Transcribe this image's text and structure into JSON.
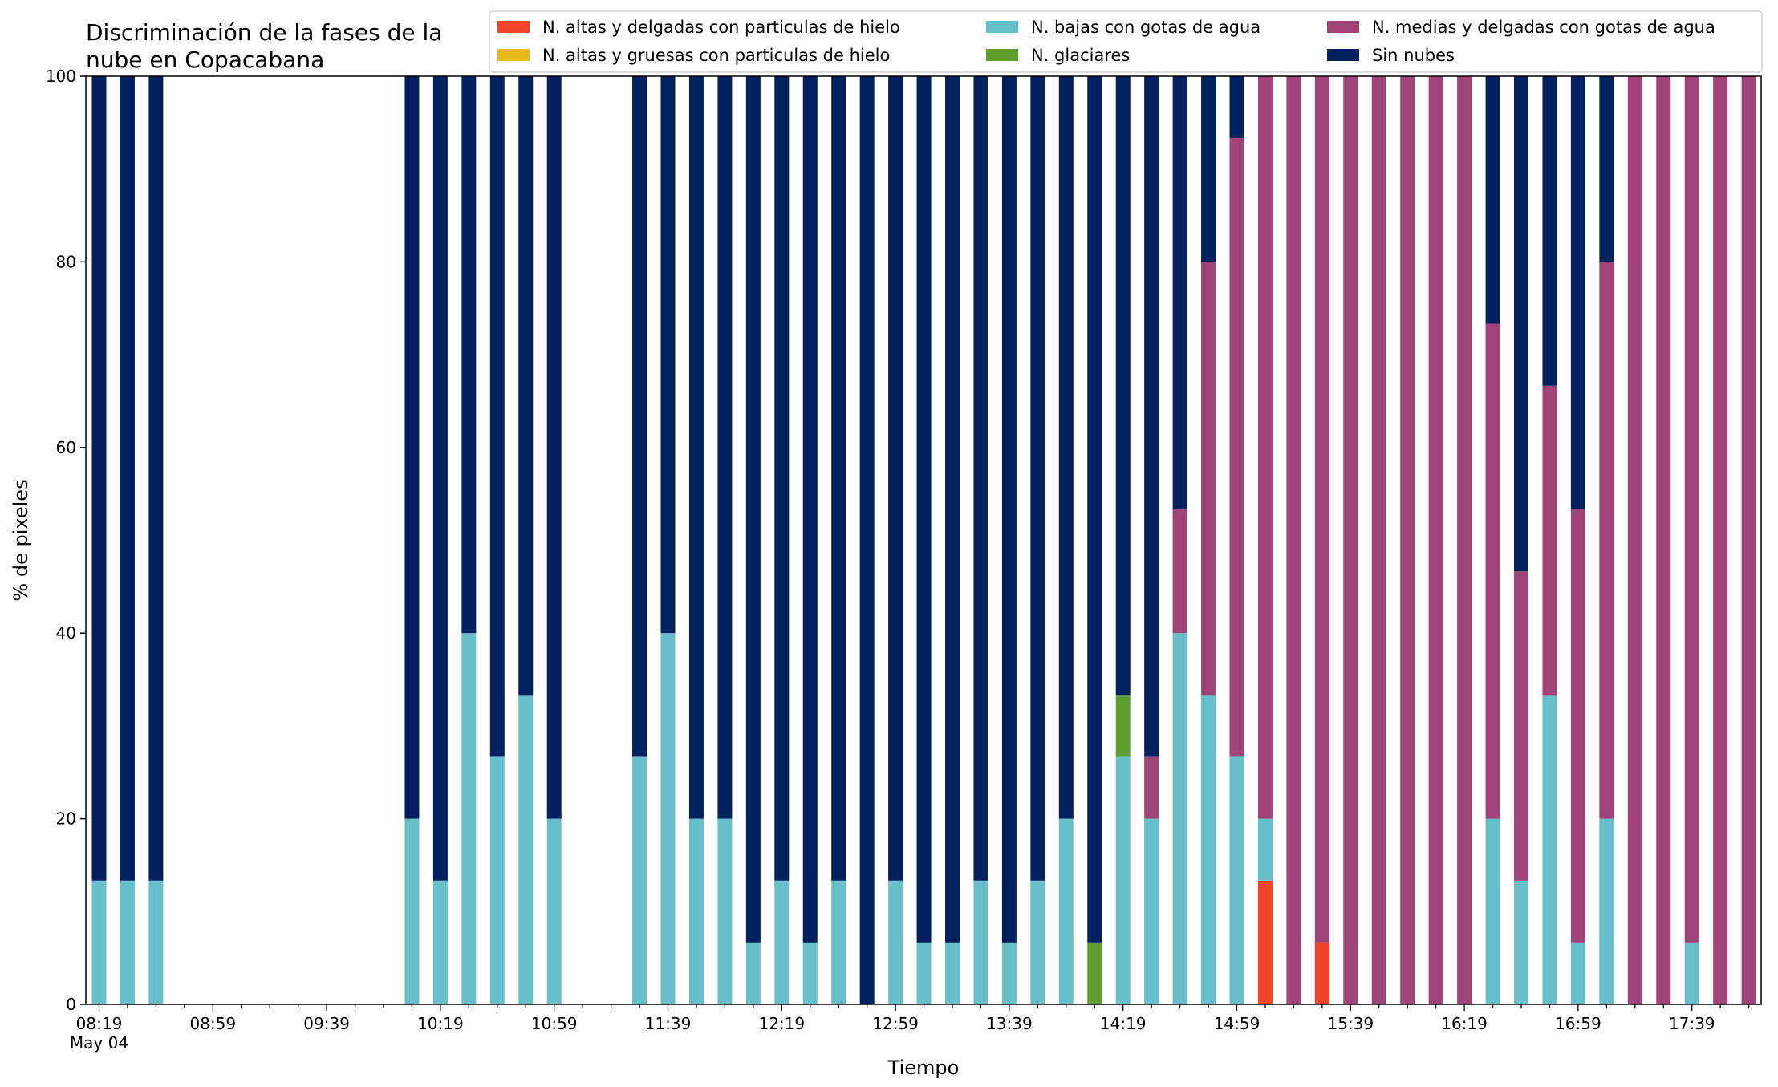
{
  "chart_data": {
    "type": "bar",
    "stacked": true,
    "title_lines": [
      "Discriminación de la fases de la",
      "nube en Copacabana"
    ],
    "xlabel": "Tiempo",
    "ylabel": "% de pixeles",
    "ylim": [
      0,
      100
    ],
    "yticks": [
      0,
      20,
      40,
      60,
      80,
      100
    ],
    "grid": false,
    "legend_position": "top-right",
    "x_start": "08:19",
    "x_interval_minutes": 10,
    "x_count": 59,
    "x_major_ticks": [
      {
        "index": 0,
        "label": "08:19",
        "sublabel": "May 04"
      },
      {
        "index": 4,
        "label": "08:59"
      },
      {
        "index": 8,
        "label": "09:39"
      },
      {
        "index": 12,
        "label": "10:19"
      },
      {
        "index": 16,
        "label": "10:59"
      },
      {
        "index": 20,
        "label": "11:39"
      },
      {
        "index": 24,
        "label": "12:19"
      },
      {
        "index": 28,
        "label": "12:59"
      },
      {
        "index": 32,
        "label": "13:39"
      },
      {
        "index": 36,
        "label": "14:19"
      },
      {
        "index": 40,
        "label": "14:59"
      },
      {
        "index": 44,
        "label": "15:39"
      },
      {
        "index": 48,
        "label": "16:19"
      },
      {
        "index": 52,
        "label": "16:59"
      },
      {
        "index": 56,
        "label": "17:39"
      }
    ],
    "series": [
      {
        "name": "N. altas y delgadas con particulas de hielo",
        "color": "#ef4528",
        "values": [
          0,
          0,
          0,
          0,
          0,
          0,
          0,
          0,
          0,
          0,
          0,
          0,
          0,
          0,
          0,
          0,
          0,
          0,
          0,
          0,
          0,
          0,
          0,
          0,
          0,
          0,
          0,
          0,
          0,
          0,
          0,
          0,
          0,
          0,
          0,
          0,
          0,
          0,
          0,
          0,
          0,
          13.33,
          0,
          6.67,
          0,
          0,
          0,
          0,
          0,
          0,
          0,
          0,
          0,
          0,
          0,
          0,
          0,
          0,
          0
        ]
      },
      {
        "name": "N. altas y gruesas con particulas de hielo",
        "color": "#e7ba1a",
        "values": [
          0,
          0,
          0,
          0,
          0,
          0,
          0,
          0,
          0,
          0,
          0,
          0,
          0,
          0,
          0,
          0,
          0,
          0,
          0,
          0,
          0,
          0,
          0,
          0,
          0,
          0,
          0,
          0,
          0,
          0,
          0,
          0,
          0,
          0,
          0,
          0,
          0,
          0,
          0,
          0,
          0,
          0,
          0,
          0,
          0,
          0,
          0,
          0,
          0,
          0,
          0,
          0,
          0,
          0,
          0,
          0,
          0,
          0,
          0
        ]
      },
      {
        "name": "N. bajas con gotas de agua",
        "color": "#67bfcb",
        "values": [
          13.33,
          13.33,
          13.33,
          0,
          0,
          0,
          0,
          0,
          0,
          0,
          0,
          20,
          13.33,
          40,
          26.67,
          33.33,
          20,
          0,
          0,
          26.67,
          40,
          20,
          20,
          6.67,
          13.33,
          6.67,
          13.33,
          0,
          13.33,
          6.67,
          6.67,
          13.33,
          6.67,
          13.33,
          20,
          0,
          26.67,
          20,
          40,
          33.33,
          26.67,
          6.67,
          0,
          0,
          0,
          0,
          0,
          0,
          0,
          20,
          13.33,
          33.33,
          6.67,
          20,
          0,
          0,
          6.67,
          0,
          0
        ]
      },
      {
        "name": "N. glaciares",
        "color": "#5d9e2e",
        "values": [
          0,
          0,
          0,
          0,
          0,
          0,
          0,
          0,
          0,
          0,
          0,
          0,
          0,
          0,
          0,
          0,
          0,
          0,
          0,
          0,
          0,
          0,
          0,
          0,
          0,
          0,
          0,
          0,
          0,
          0,
          0,
          0,
          0,
          0,
          0,
          6.67,
          6.67,
          0,
          0,
          0,
          0,
          0,
          0,
          0,
          0,
          0,
          0,
          0,
          0,
          0,
          0,
          0,
          0,
          0,
          0,
          0,
          0,
          0,
          0
        ]
      },
      {
        "name": "N. medias y delgadas con gotas de agua",
        "color": "#a04378",
        "values": [
          0,
          0,
          0,
          0,
          0,
          0,
          0,
          0,
          0,
          0,
          0,
          0,
          0,
          0,
          0,
          0,
          0,
          0,
          0,
          0,
          0,
          0,
          0,
          0,
          0,
          0,
          0,
          0,
          0,
          0,
          0,
          0,
          0,
          0,
          0,
          0,
          0,
          6.67,
          13.33,
          46.67,
          66.67,
          80,
          100,
          93.33,
          100,
          100,
          100,
          100,
          100,
          53.33,
          33.33,
          33.33,
          46.67,
          60,
          100,
          100,
          93.33,
          100,
          100
        ]
      },
      {
        "name": "Sin nubes",
        "color": "#03205f",
        "values": [
          86.67,
          86.67,
          86.67,
          0,
          0,
          0,
          0,
          0,
          0,
          0,
          0,
          80,
          86.67,
          60,
          73.33,
          66.67,
          80,
          0,
          0,
          73.33,
          60,
          80,
          80,
          93.33,
          86.67,
          93.33,
          86.67,
          100,
          86.67,
          93.33,
          93.33,
          86.67,
          93.33,
          86.67,
          80,
          93.33,
          66.67,
          73.33,
          46.67,
          20,
          6.67,
          0,
          0,
          0,
          0,
          0,
          0,
          0,
          0,
          26.67,
          53.33,
          33.33,
          46.67,
          20,
          0,
          0,
          0,
          0,
          0
        ]
      }
    ]
  }
}
